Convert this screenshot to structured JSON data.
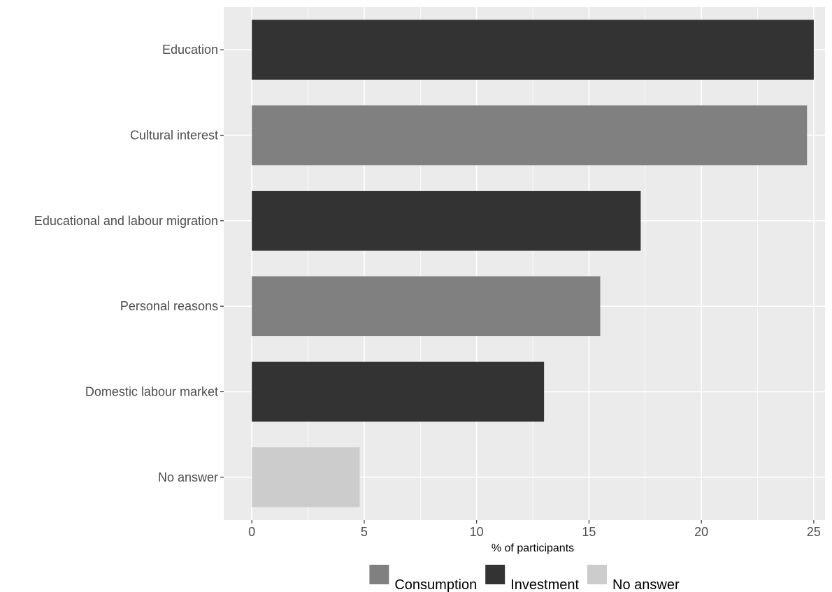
{
  "chart_data": {
    "type": "bar",
    "orientation": "horizontal",
    "categories": [
      "Education",
      "Cultural interest",
      "Educational and labour migration",
      "Personal reasons",
      "Domestic labour market",
      "No answer"
    ],
    "values": [
      25.0,
      24.7,
      17.3,
      15.5,
      13.0,
      4.8
    ],
    "groups": [
      "Investment",
      "Consumption",
      "Investment",
      "Consumption",
      "Investment",
      "No answer"
    ],
    "xlabel": "% of participants",
    "ylabel": "",
    "xlim": [
      -1.25,
      25.5
    ],
    "xticks": [
      0,
      5,
      10,
      15,
      20,
      25
    ],
    "grid": true,
    "legend": {
      "position": "bottom",
      "entries": [
        {
          "name": "Consumption",
          "color": "#808080"
        },
        {
          "name": "Investment",
          "color": "#333333"
        },
        {
          "name": "No answer",
          "color": "#cccccc"
        }
      ]
    },
    "colors": {
      "panel": "#ebebeb",
      "grid": "#ffffff"
    }
  }
}
